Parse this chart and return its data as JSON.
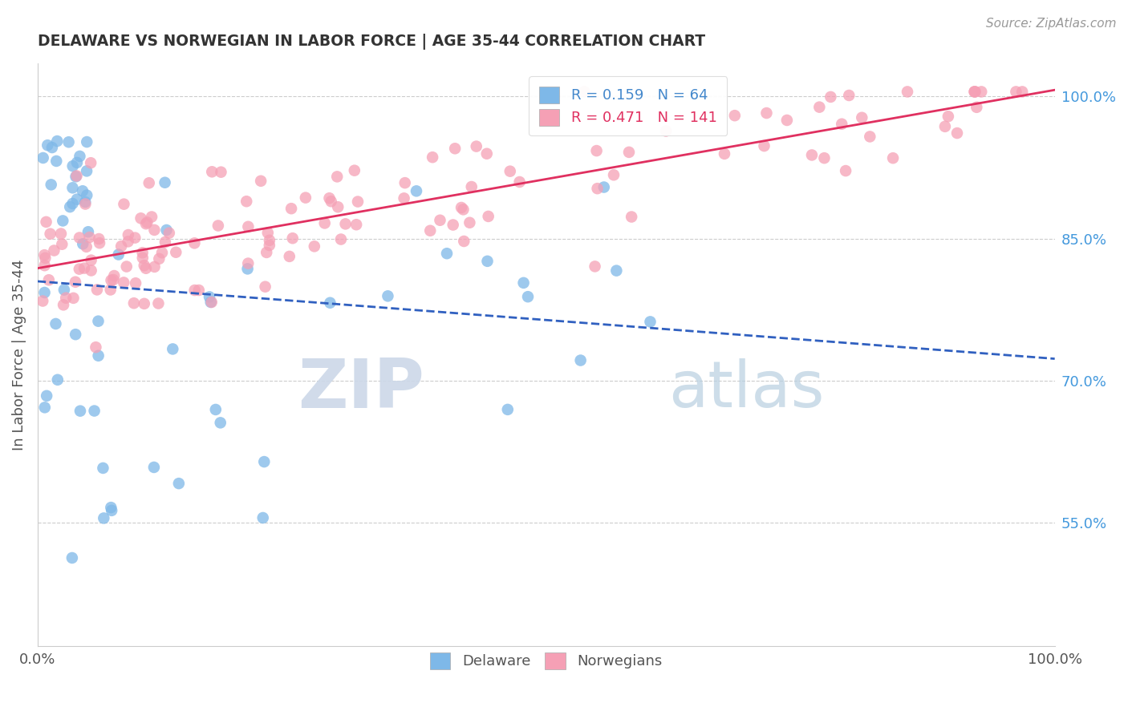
{
  "title": "DELAWARE VS NORWEGIAN IN LABOR FORCE | AGE 35-44 CORRELATION CHART",
  "source_text": "Source: ZipAtlas.com",
  "ylabel": "In Labor Force | Age 35-44",
  "legend_entries": [
    "Delaware",
    "Norwegians"
  ],
  "delaware_R": 0.159,
  "delaware_N": 64,
  "norwegian_R": 0.471,
  "norwegian_N": 141,
  "delaware_color": "#7eb8e8",
  "norwegian_color": "#f5a0b5",
  "delaware_trend_color": "#3060c0",
  "norwegian_trend_color": "#e03060",
  "background_color": "#ffffff",
  "watermark_color": "#ccd8e8",
  "xmin": 0.0,
  "xmax": 1.0,
  "ymin": 0.42,
  "ymax": 1.035,
  "ytick_positions": [
    0.55,
    0.7,
    0.85,
    1.0
  ],
  "ytick_labels": [
    "55.0%",
    "70.0%",
    "85.0%",
    "100.0%"
  ],
  "xtick_positions": [
    0.0,
    1.0
  ],
  "xtick_labels": [
    "0.0%",
    "100.0%"
  ]
}
